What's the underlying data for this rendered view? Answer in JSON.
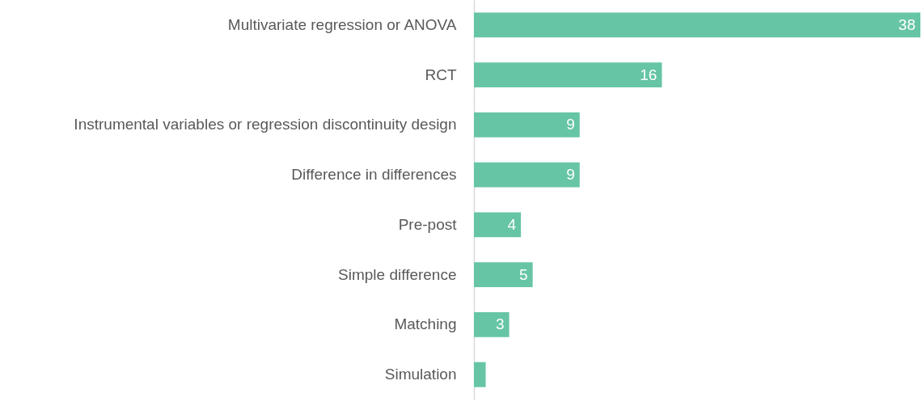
{
  "chart_data": {
    "type": "bar",
    "orientation": "horizontal",
    "categories": [
      "Multivariate regression or ANOVA",
      "RCT",
      "Instrumental variables or regression discontinuity design",
      "Difference in differences",
      "Pre-post",
      "Simple difference",
      "Matching",
      "Simulation"
    ],
    "values": [
      38,
      16,
      9,
      9,
      4,
      5,
      3,
      1
    ],
    "value_labels": [
      "38",
      "16",
      "9",
      "9",
      "4",
      "5",
      "3",
      null
    ],
    "color": "#66c5a5"
  }
}
